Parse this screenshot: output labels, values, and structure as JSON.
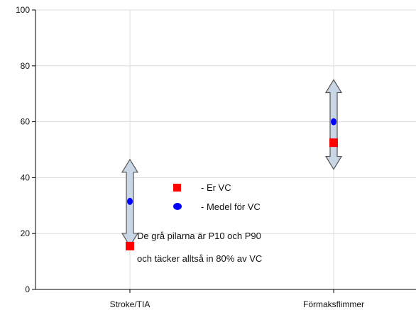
{
  "chart_data": {
    "type": "scatter",
    "categories": [
      "Stroke/TIA",
      "Förmaksflimmer"
    ],
    "ylim": [
      0,
      100
    ],
    "yticks": [
      0,
      20,
      40,
      60,
      80,
      100
    ],
    "grid": true,
    "series": [
      {
        "name": "- Er VC",
        "marker": "square",
        "color": "#ff0000",
        "values": [
          15.5,
          52.5
        ]
      },
      {
        "name": "- Medel för VC",
        "marker": "circle",
        "color": "#0000ff",
        "values": [
          31.5,
          60
        ]
      }
    ],
    "ranges": {
      "p10": [
        15.5,
        43
      ],
      "p90": [
        46.5,
        75
      ],
      "arrow_fill": "#c9d6e6",
      "arrow_stroke": "#555555"
    },
    "note": [
      "De grå pilarna är P10 och P90",
      "och täcker alltså in 80% av VC"
    ],
    "legend_position": "center"
  }
}
